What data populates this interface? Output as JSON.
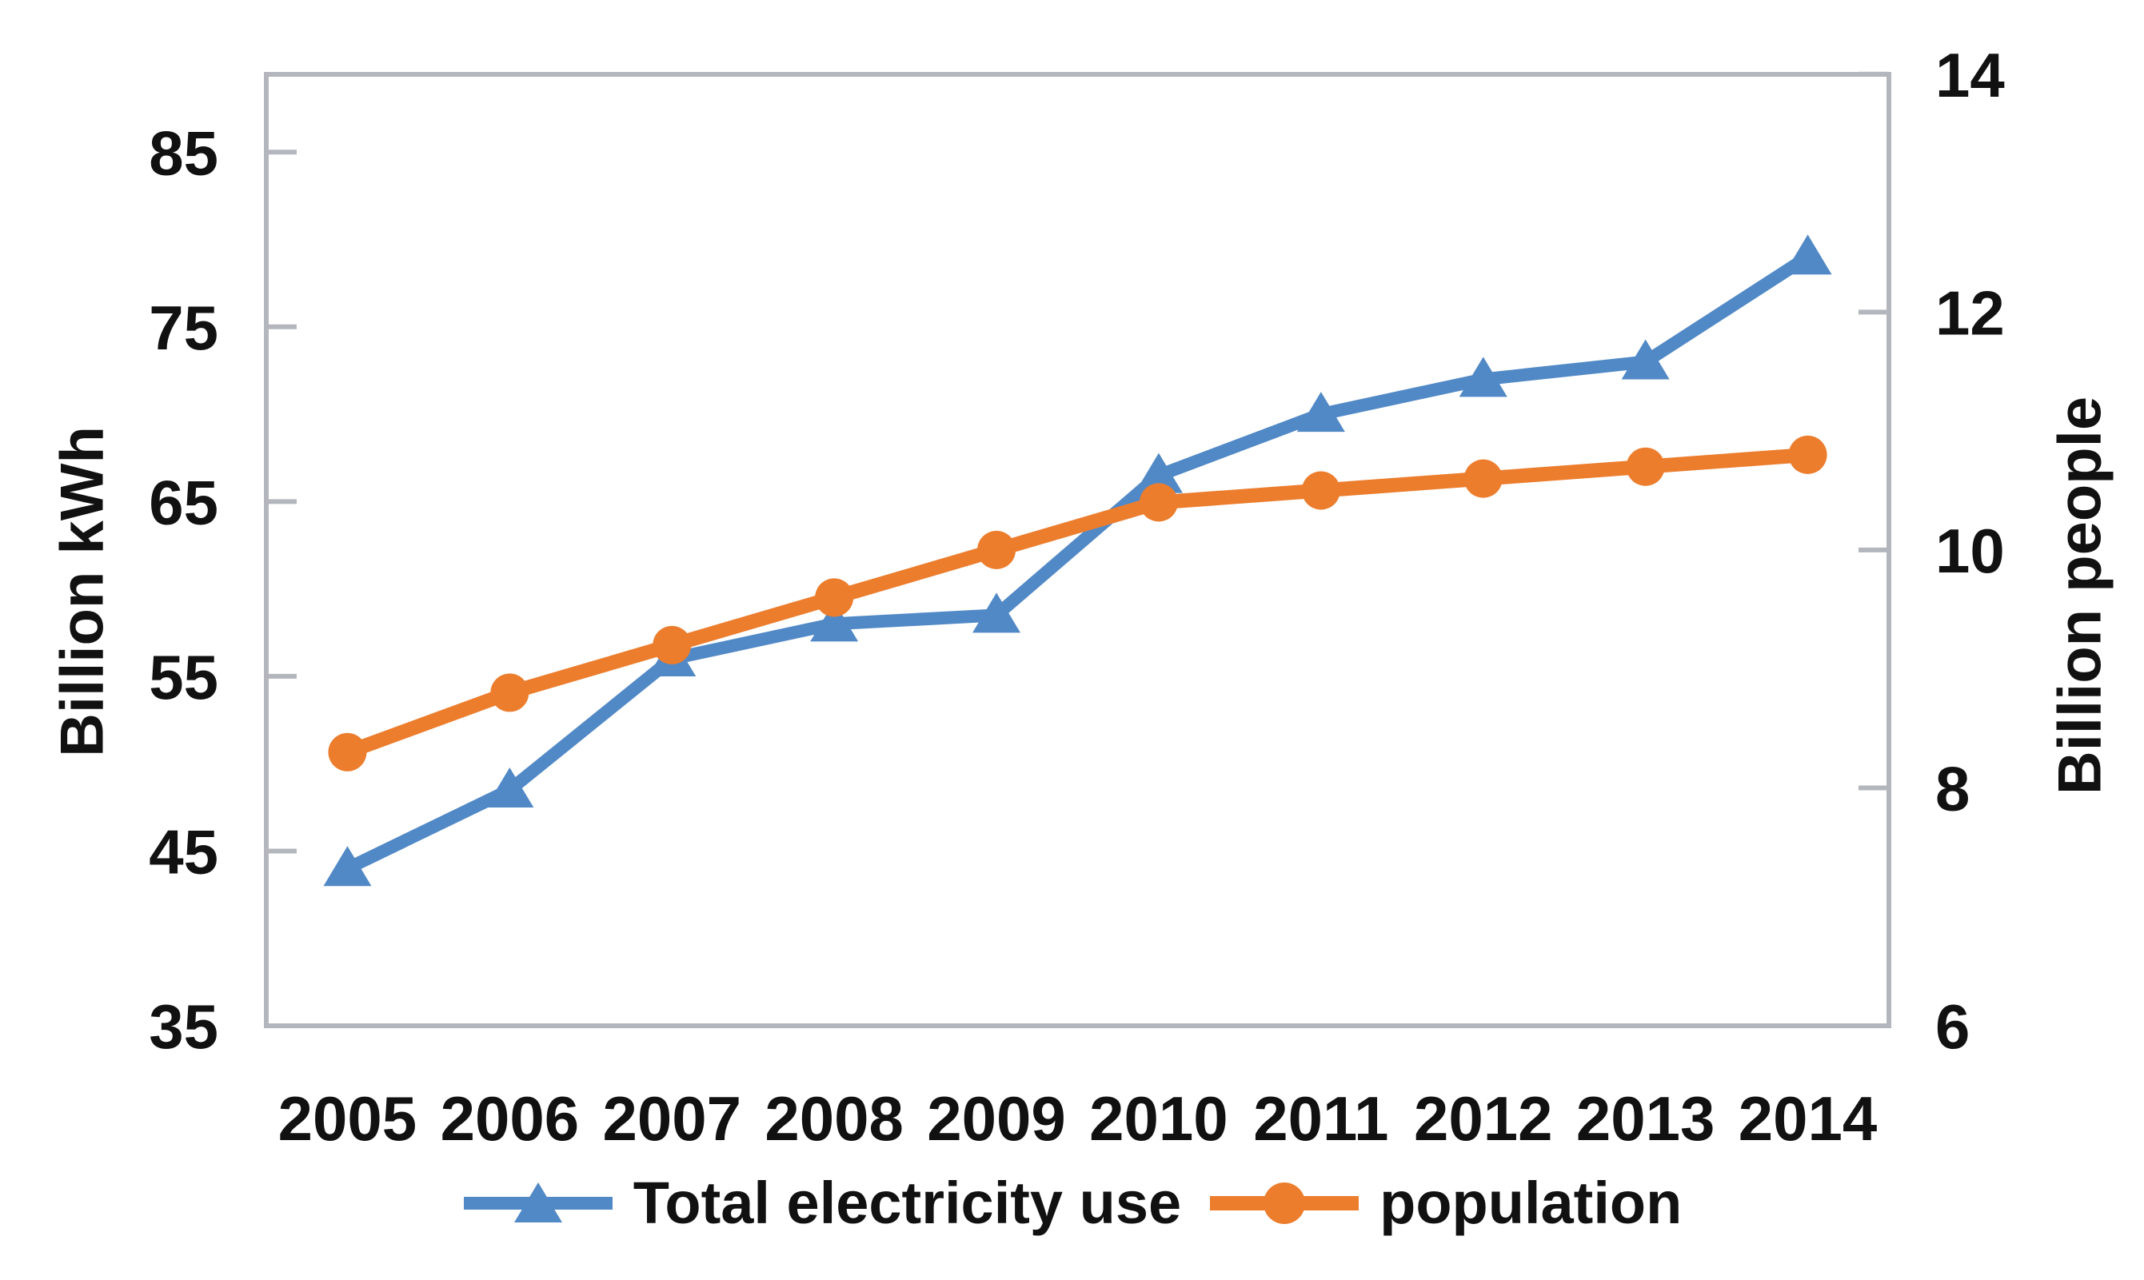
{
  "figure": {
    "background": "#ffffff",
    "axis_color": "#b3b7bd",
    "text_color": "#111111"
  },
  "chart_data": {
    "type": "line",
    "title": "",
    "categories": [
      "2005",
      "2006",
      "2007",
      "2008",
      "2009",
      "2010",
      "2011",
      "2012",
      "2013",
      "2014"
    ],
    "series": [
      {
        "name": "Total electricity use",
        "axis": "left",
        "color": "#5189c6",
        "marker": "triangle",
        "line_width": 16,
        "values": [
          44,
          48.5,
          56,
          58,
          58.5,
          66.5,
          70,
          72,
          73,
          79
        ]
      },
      {
        "name": "population",
        "axis": "right",
        "color": "#ec7d2d",
        "marker": "circle",
        "line_width": 18,
        "values": [
          8.3,
          8.8,
          9.2,
          9.6,
          10,
          10.4,
          10.5,
          10.6,
          10.7,
          10.8
        ]
      }
    ],
    "left_axis": {
      "title": "Billion kWh",
      "min": 35,
      "max": 90,
      "ticks": [
        85,
        75,
        65,
        55,
        45,
        35
      ]
    },
    "right_axis": {
      "title": "Billion people",
      "min": 6,
      "max": 14,
      "ticks": [
        14,
        12,
        10,
        8,
        6
      ]
    },
    "x_axis": {
      "labels": [
        "2005",
        "2006",
        "2007",
        "2008",
        "2009",
        "2010",
        "2011",
        "2012",
        "2013",
        "2014"
      ]
    },
    "legend_position": "bottom",
    "grid": false
  }
}
